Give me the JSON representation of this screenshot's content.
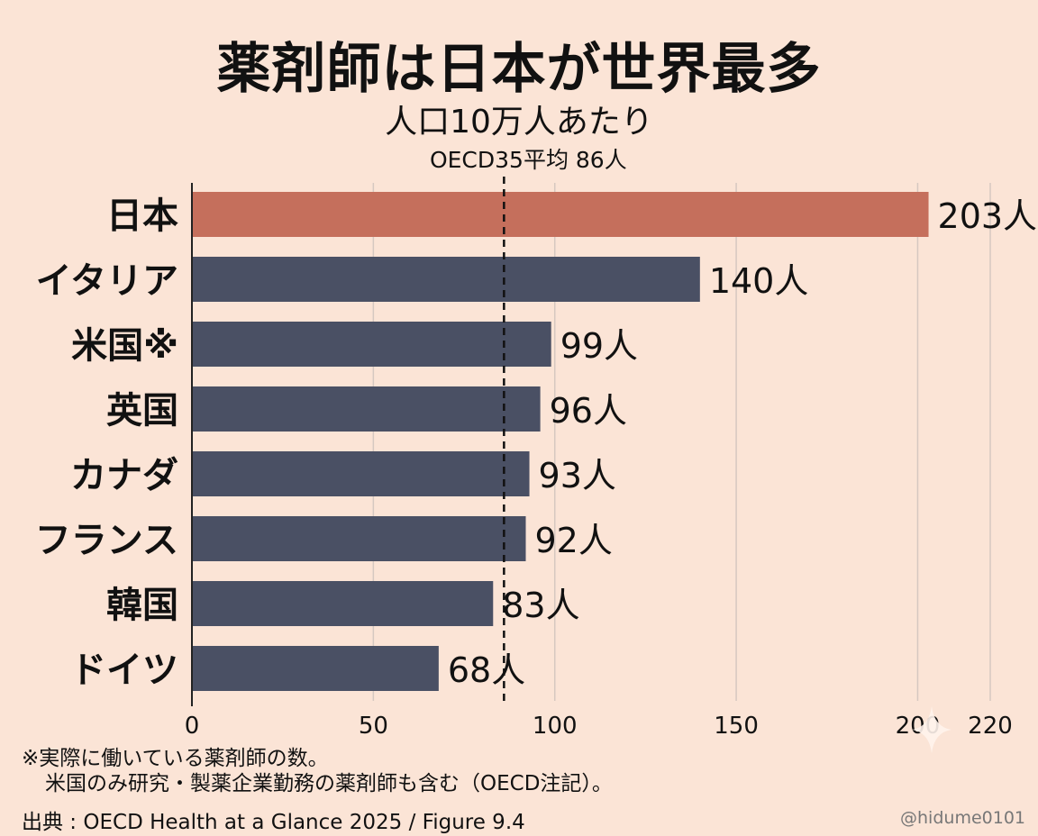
{
  "title": "薬剤師は日本が世界最多",
  "subtitle": "人口10万人あたり",
  "notes": {
    "line1": "※実際に働いている薬剤師の数。",
    "line2": "米国のみ研究・製薬企業勤務の薬剤師も含む（OECD注記）。",
    "source": "出典 : OECD Health at a Glance 2025 / Figure 9.4"
  },
  "credit": "@hidume0101",
  "colors": {
    "highlight": "#c56f5c",
    "bar": "#4a5064",
    "grid": "#d6c8c0"
  },
  "chart_data": {
    "type": "bar",
    "orientation": "horizontal",
    "categories": [
      "日本",
      "イタリア",
      "米国※",
      "英国",
      "カナダ",
      "フランス",
      "韓国",
      "ドイツ"
    ],
    "values": [
      203,
      140,
      99,
      96,
      93,
      92,
      83,
      68
    ],
    "value_labels": [
      "203人",
      "140人",
      "99人",
      "96人",
      "93人",
      "92人",
      "83人",
      "68人"
    ],
    "highlight_index": 0,
    "xlim": [
      0,
      220
    ],
    "xticks": [
      0,
      50,
      100,
      150,
      200,
      220
    ],
    "reference_line": {
      "value": 86,
      "label": "OECD35平均 86人"
    },
    "grid": true
  }
}
